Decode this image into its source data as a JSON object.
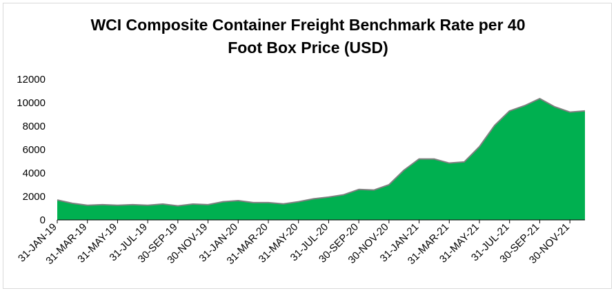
{
  "chart_data": {
    "type": "area",
    "title_lines": [
      "WCI Composite Container Freight Benchmark Rate per 40",
      "Foot Box Price (USD)"
    ],
    "xlabel": "",
    "ylabel": "",
    "ylim": [
      0,
      12000
    ],
    "yticks": [
      0,
      2000,
      4000,
      6000,
      8000,
      10000,
      12000
    ],
    "grid": false,
    "legend": "none",
    "x": [
      "31-JAN-19",
      "28-FEB-19",
      "31-MAR-19",
      "30-APR-19",
      "31-MAY-19",
      "30-JUN-19",
      "31-JUL-19",
      "31-AUG-19",
      "30-SEP-19",
      "31-OCT-19",
      "30-NOV-19",
      "31-DEC-19",
      "31-JAN-20",
      "29-FEB-20",
      "31-MAR-20",
      "30-APR-20",
      "31-MAY-20",
      "30-JUN-20",
      "31-JUL-20",
      "31-AUG-20",
      "30-SEP-20",
      "31-OCT-20",
      "30-NOV-20",
      "31-DEC-20",
      "31-JAN-21",
      "28-FEB-21",
      "31-MAR-21",
      "30-APR-21",
      "31-MAY-21",
      "30-JUN-21",
      "31-JUL-21",
      "31-AUG-21",
      "30-SEP-21",
      "31-OCT-21",
      "30-NOV-21",
      "31-DEC-21"
    ],
    "xtick_labels": [
      "31-JAN-19",
      "31-MAR-19",
      "31-MAY-19",
      "31-JUL-19",
      "30-SEP-19",
      "30-NOV-19",
      "31-JAN-20",
      "31-MAR-20",
      "31-MAY-20",
      "31-JUL-20",
      "30-SEP-20",
      "30-NOV-20",
      "31-JAN-21",
      "31-MAR-21",
      "31-MAY-21",
      "31-JUL-21",
      "30-SEP-21",
      "30-NOV-21"
    ],
    "values": [
      1700,
      1420,
      1250,
      1300,
      1250,
      1300,
      1250,
      1350,
      1200,
      1350,
      1300,
      1550,
      1650,
      1480,
      1480,
      1370,
      1550,
      1800,
      1950,
      2150,
      2600,
      2550,
      3000,
      4250,
      5200,
      5200,
      4850,
      4950,
      6250,
      8050,
      9300,
      9750,
      10350,
      9650,
      9200,
      9300
    ],
    "colors": {
      "fill": "#00b050",
      "line": "#7f7f7f",
      "axis": "#000000"
    }
  }
}
